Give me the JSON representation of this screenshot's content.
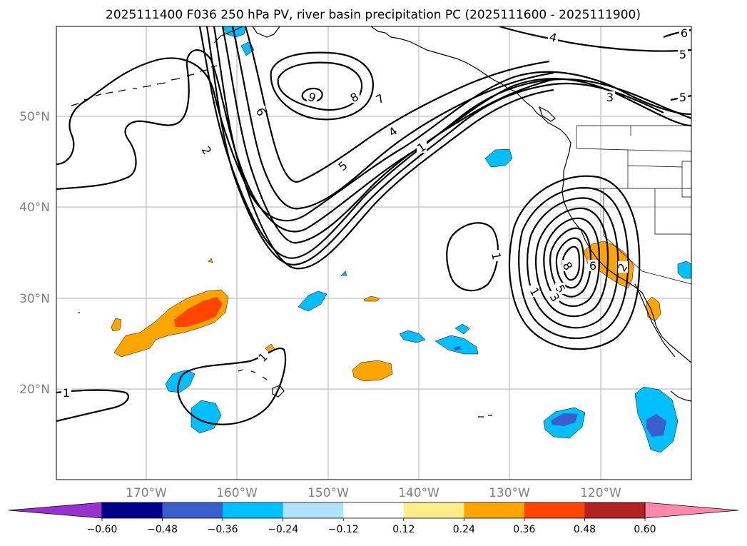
{
  "title": "2025111400 F036 250 hPa PV, river basin precipitation PC (2025111600 - 2025111900)",
  "map": {
    "lat_labels": [
      "50°N",
      "40°N",
      "30°N",
      "20°N"
    ],
    "lon_labels": [
      "170°W",
      "160°W",
      "150°W",
      "140°W",
      "130°W",
      "120°W"
    ]
  },
  "contour_labels": [
    {
      "id": "c9",
      "text": "9"
    },
    {
      "id": "c8a",
      "text": "8"
    },
    {
      "id": "c7",
      "text": "7"
    },
    {
      "id": "c6",
      "text": "6"
    },
    {
      "id": "c5a",
      "text": "5"
    },
    {
      "id": "c4a",
      "text": "4"
    },
    {
      "id": "c1a",
      "text": "1"
    },
    {
      "id": "c2",
      "text": "2"
    },
    {
      "id": "c4b",
      "text": "4"
    },
    {
      "id": "c5b",
      "text": "5"
    },
    {
      "id": "c5c",
      "text": "5"
    },
    {
      "id": "c3a",
      "text": "3"
    },
    {
      "id": "c6b",
      "text": "6"
    },
    {
      "id": "c1b",
      "text": "1"
    },
    {
      "id": "c8b",
      "text": "8"
    },
    {
      "id": "c5d",
      "text": "5"
    },
    {
      "id": "c3b",
      "text": "3"
    },
    {
      "id": "c1c",
      "text": "1"
    },
    {
      "id": "c6c",
      "text": "6"
    },
    {
      "id": "c2b",
      "text": "2"
    },
    {
      "id": "c1d",
      "text": "1"
    },
    {
      "id": "c1e",
      "text": "1"
    }
  ],
  "colorbar": {
    "colors": [
      "#9932cc",
      "#00008b",
      "#3a5fcd",
      "#00bfff",
      "#b0e2ff",
      "#ffffff",
      "#ffec8b",
      "#ffa500",
      "#ff4500",
      "#b22222",
      "#ff88aa"
    ],
    "tick_labels": [
      "−0.60",
      "−0.48",
      "−0.36",
      "−0.24",
      "−0.12",
      "0.12",
      "0.24",
      "0.36",
      "0.48",
      "0.60"
    ]
  }
}
